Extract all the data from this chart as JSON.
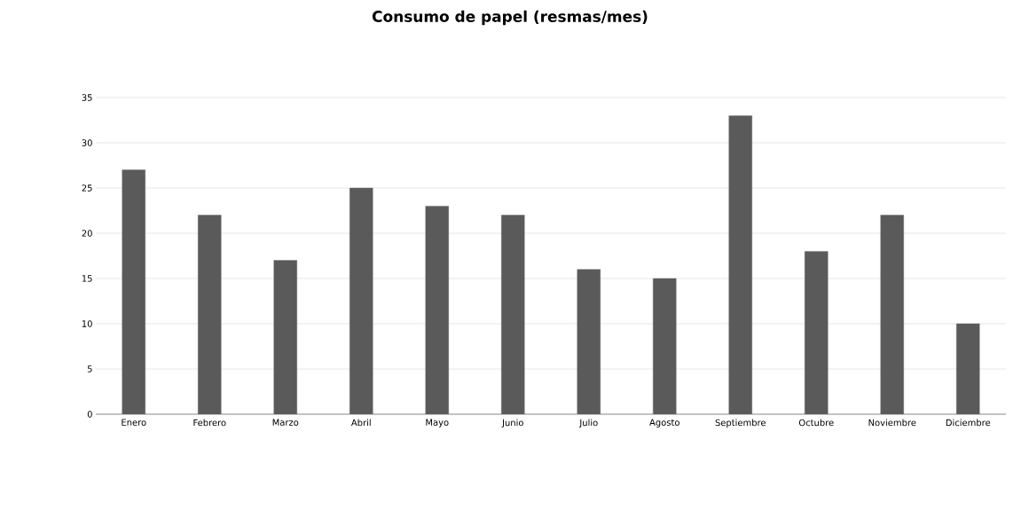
{
  "chart_data": {
    "type": "bar",
    "title": "Consumo de papel (resmas/mes)",
    "categories": [
      "Enero",
      "Febrero",
      "Marzo",
      "Abril",
      "Mayo",
      "Junio",
      "Julio",
      "Agosto",
      "Septiembre",
      "Octubre",
      "Noviembre",
      "Diciembre"
    ],
    "values": [
      27,
      22,
      17,
      25,
      23,
      22,
      16,
      15,
      33,
      18,
      22,
      10
    ],
    "color": "#5a5a5a",
    "ylim": [
      0,
      35
    ],
    "yticks": [
      0,
      5,
      10,
      15,
      20,
      25,
      30,
      35
    ],
    "grid": "y"
  }
}
